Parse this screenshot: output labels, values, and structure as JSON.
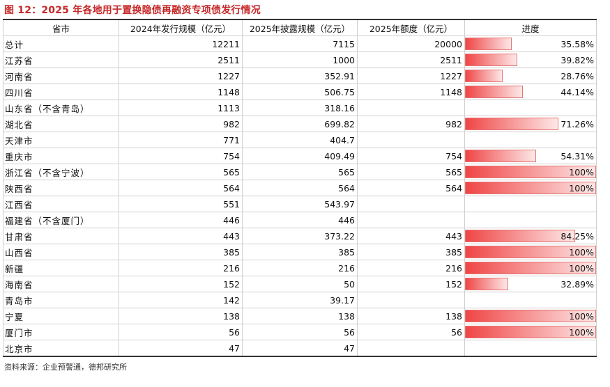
{
  "title": "图 12：2025 年各地用于置换隐债再融资专项债发行情况",
  "headers": [
    "省市",
    "2024年发行规模（亿元）",
    "2025年披露规模（亿元）",
    "2025年额度（亿元）",
    "进度"
  ],
  "rows": [
    {
      "name": "总计",
      "issued_2024": "12211",
      "disclosed_2025": "7115",
      "quota_2025": "20000",
      "progress": "35.58%",
      "progress_value": 35.58
    },
    {
      "name": "江苏省",
      "issued_2024": "2511",
      "disclosed_2025": "1000",
      "quota_2025": "2511",
      "progress": "39.82%",
      "progress_value": 39.82
    },
    {
      "name": "河南省",
      "issued_2024": "1227",
      "disclosed_2025": "352.91",
      "quota_2025": "1227",
      "progress": "28.76%",
      "progress_value": 28.76
    },
    {
      "name": "四川省",
      "issued_2024": "1148",
      "disclosed_2025": "506.75",
      "quota_2025": "1148",
      "progress": "44.14%",
      "progress_value": 44.14
    },
    {
      "name": "山东省（不含青岛）",
      "issued_2024": "1113",
      "disclosed_2025": "318.16",
      "quota_2025": "",
      "progress": "",
      "progress_value": null
    },
    {
      "name": "湖北省",
      "issued_2024": "982",
      "disclosed_2025": "699.82",
      "quota_2025": "982",
      "progress": "71.26%",
      "progress_value": 71.26
    },
    {
      "name": "天津市",
      "issued_2024": "771",
      "disclosed_2025": "404.7",
      "quota_2025": "",
      "progress": "",
      "progress_value": null
    },
    {
      "name": "重庆市",
      "issued_2024": "754",
      "disclosed_2025": "409.49",
      "quota_2025": "754",
      "progress": "54.31%",
      "progress_value": 54.31
    },
    {
      "name": "浙江省（不含宁波）",
      "issued_2024": "565",
      "disclosed_2025": "565",
      "quota_2025": "565",
      "progress": "100%",
      "progress_value": 100
    },
    {
      "name": "陕西省",
      "issued_2024": "564",
      "disclosed_2025": "564",
      "quota_2025": "564",
      "progress": "100%",
      "progress_value": 100
    },
    {
      "name": "江西省",
      "issued_2024": "551",
      "disclosed_2025": "543.97",
      "quota_2025": "",
      "progress": "",
      "progress_value": null
    },
    {
      "name": "福建省（不含厦门）",
      "issued_2024": "446",
      "disclosed_2025": "446",
      "quota_2025": "",
      "progress": "",
      "progress_value": null
    },
    {
      "name": "甘肃省",
      "issued_2024": "443",
      "disclosed_2025": "373.22",
      "quota_2025": "443",
      "progress": "84.25%",
      "progress_value": 84.25
    },
    {
      "name": "山西省",
      "issued_2024": "385",
      "disclosed_2025": "385",
      "quota_2025": "385",
      "progress": "100%",
      "progress_value": 100
    },
    {
      "name": "新疆",
      "issued_2024": "216",
      "disclosed_2025": "216",
      "quota_2025": "216",
      "progress": "100%",
      "progress_value": 100
    },
    {
      "name": "海南省",
      "issued_2024": "152",
      "disclosed_2025": "50",
      "quota_2025": "152",
      "progress": "32.89%",
      "progress_value": 32.89
    },
    {
      "name": "青岛市",
      "issued_2024": "142",
      "disclosed_2025": "39.17",
      "quota_2025": "",
      "progress": "",
      "progress_value": null
    },
    {
      "name": "宁夏",
      "issued_2024": "138",
      "disclosed_2025": "138",
      "quota_2025": "138",
      "progress": "100%",
      "progress_value": 100
    },
    {
      "name": "厦门市",
      "issued_2024": "56",
      "disclosed_2025": "56",
      "quota_2025": "56",
      "progress": "100%",
      "progress_value": 100
    },
    {
      "name": "北京市",
      "issued_2024": "47",
      "disclosed_2025": "47",
      "quota_2025": "",
      "progress": "",
      "progress_value": null
    }
  ],
  "source": "资料来源：企业预警通，德邦研究所",
  "colors": {
    "title": "#c62828",
    "bar_start": "#f04545",
    "bar_end": "#fde8e8",
    "bar_border": "#e57373"
  }
}
